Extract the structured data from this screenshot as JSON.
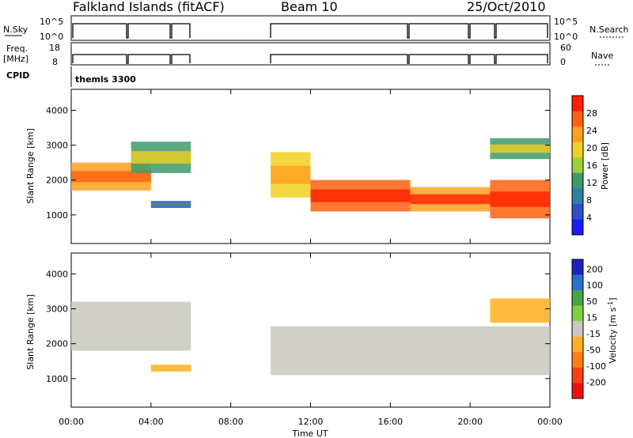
{
  "header": {
    "station": "Falkland Islands (fitACF)",
    "beam": "Beam 10",
    "date": "25/Oct/2010"
  },
  "strips": {
    "nsky_label": "N.Sky",
    "nsky_ticks": [
      "10^5",
      "10^0"
    ],
    "nsearch_label": "N.Search",
    "nsearch_ticks": [
      "10^5",
      "10^0"
    ],
    "freq_label": "Freq.",
    "freq_unit": "[MHz]",
    "freq_ticks": [
      "18",
      "8"
    ],
    "nave_label": "Nave",
    "nave_ticks": [
      "60",
      "0"
    ],
    "cpid_label": "CPID",
    "cpid_value": "themis 3300"
  },
  "colors": {
    "power_scale": [
      "#1a1aff",
      "#2f4fc8",
      "#2f7fa0",
      "#3f9a6a",
      "#9ccf3a",
      "#f0d020",
      "#ffa020",
      "#ff6010",
      "#ff2000"
    ],
    "velocity_scale": [
      "#2020c0",
      "#2a6fd0",
      "#46a646",
      "#80d040",
      "#c8c8c0",
      "#ffb020",
      "#ff8010",
      "#ff4010",
      "#ee1010"
    ],
    "ground_scatter": "#c8c8c0"
  },
  "chart_data": [
    {
      "type": "heatmap",
      "name": "power",
      "xlabel": "",
      "ylabel": "Slant Range [km]",
      "x_ticks": [
        "00:00",
        "04:00",
        "08:00",
        "12:00",
        "16:00",
        "20:00",
        "00:00"
      ],
      "xlim": [
        0,
        24
      ],
      "y_ticks": [
        "1000",
        "2000",
        "3000",
        "4000"
      ],
      "ylim": [
        180,
        4600
      ],
      "colorbar_label": "Power [dB]",
      "colorbar_ticks": [
        "4",
        "8",
        "12",
        "16",
        "20",
        "24",
        "28"
      ],
      "bands": [
        {
          "t_start": 0.0,
          "t_end": 4.0,
          "r_start": 1700,
          "r_end": 2500,
          "level": 22
        },
        {
          "t_start": 3.0,
          "t_end": 6.0,
          "r_start": 2200,
          "r_end": 3100,
          "level": 12
        },
        {
          "t_start": 4.0,
          "t_end": 6.0,
          "r_start": 1200,
          "r_end": 1400,
          "level": 6
        },
        {
          "t_start": 10.0,
          "t_end": 12.0,
          "r_start": 1500,
          "r_end": 2800,
          "level": 18
        },
        {
          "t_start": 12.0,
          "t_end": 17.0,
          "r_start": 1100,
          "r_end": 2000,
          "level": 25
        },
        {
          "t_start": 17.0,
          "t_end": 21.0,
          "r_start": 1100,
          "r_end": 1800,
          "level": 24
        },
        {
          "t_start": 21.0,
          "t_end": 24.0,
          "r_start": 900,
          "r_end": 2000,
          "level": 26
        },
        {
          "t_start": 21.0,
          "t_end": 24.0,
          "r_start": 2600,
          "r_end": 3200,
          "level": 12
        }
      ]
    },
    {
      "type": "heatmap",
      "name": "velocity",
      "xlabel": "Time UT",
      "ylabel": "Slant Range [km]",
      "x_ticks": [
        "00:00",
        "04:00",
        "08:00",
        "12:00",
        "16:00",
        "20:00",
        "00:00"
      ],
      "xlim": [
        0,
        24
      ],
      "y_ticks": [
        "1000",
        "2000",
        "3000",
        "4000"
      ],
      "ylim": [
        180,
        4600
      ],
      "colorbar_label": "Velocity [m s",
      "colorbar_unit_exp": "-1",
      "colorbar_ticks": [
        "200",
        "100",
        "50",
        "15",
        "-15",
        "-50",
        "-100",
        "-200"
      ],
      "bands": [
        {
          "t_start": 0.0,
          "t_end": 6.0,
          "r_start": 1800,
          "r_end": 3200,
          "level": 0
        },
        {
          "t_start": 4.0,
          "t_end": 6.0,
          "r_start": 1200,
          "r_end": 1400,
          "level": -40
        },
        {
          "t_start": 10.0,
          "t_end": 24.0,
          "r_start": 1100,
          "r_end": 2500,
          "level": 0
        },
        {
          "t_start": 21.0,
          "t_end": 24.0,
          "r_start": 2600,
          "r_end": 3300,
          "level": -30
        }
      ]
    }
  ]
}
